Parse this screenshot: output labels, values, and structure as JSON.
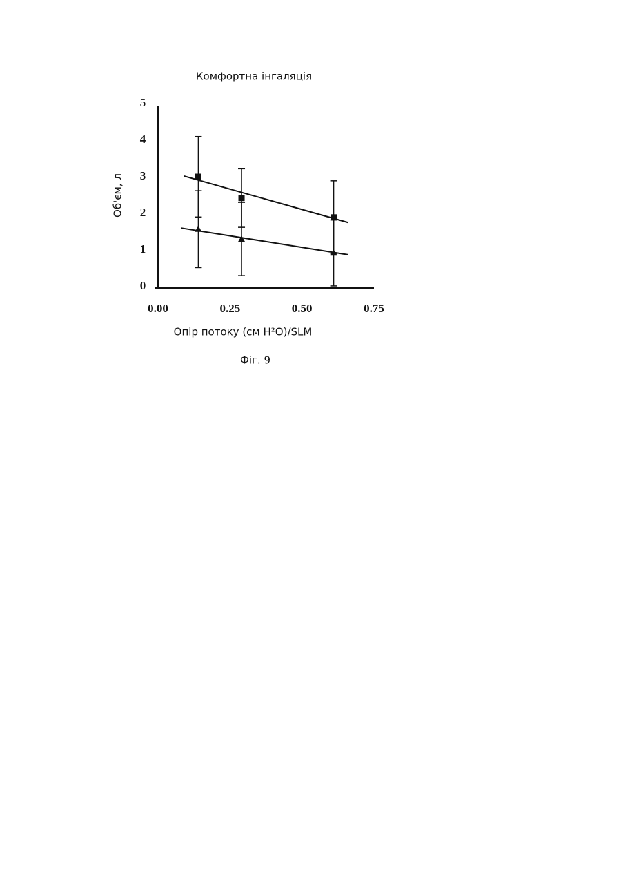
{
  "chart_data": {
    "type": "scatter",
    "title": "Комфортна інгаляція",
    "x_label": "Опір потоку   (см H²O)/SLM",
    "y_label": "Об'єм, л",
    "caption": "Фіг. 9",
    "xlim": [
      0,
      0.75
    ],
    "ylim": [
      0,
      5
    ],
    "xticks": [
      {
        "value": 0,
        "label": "0.00"
      },
      0.25,
      {
        "value": 0.5,
        "label": "0.50"
      },
      0.75
    ],
    "yticks": [
      0,
      1,
      2,
      3,
      4,
      5
    ],
    "series": [
      {
        "marker": "square",
        "color": "#111111",
        "x": [
          0.14,
          0.29,
          0.61
        ],
        "values": [
          3.0,
          2.42,
          1.89
        ],
        "errors": [
          1.1,
          0.8,
          1.0
        ],
        "trend": {
          "x": [
            0.09,
            0.66
          ],
          "values": [
            3.02,
            1.75
          ]
        }
      },
      {
        "marker": "triangle",
        "color": "#111111",
        "x": [
          0.14,
          0.29,
          0.61
        ],
        "values": [
          1.57,
          1.3,
          0.92
        ],
        "errors": [
          1.05,
          1.0,
          0.9
        ],
        "trend": {
          "x": [
            0.08,
            0.66
          ],
          "values": [
            1.6,
            0.87
          ]
        }
      }
    ]
  }
}
